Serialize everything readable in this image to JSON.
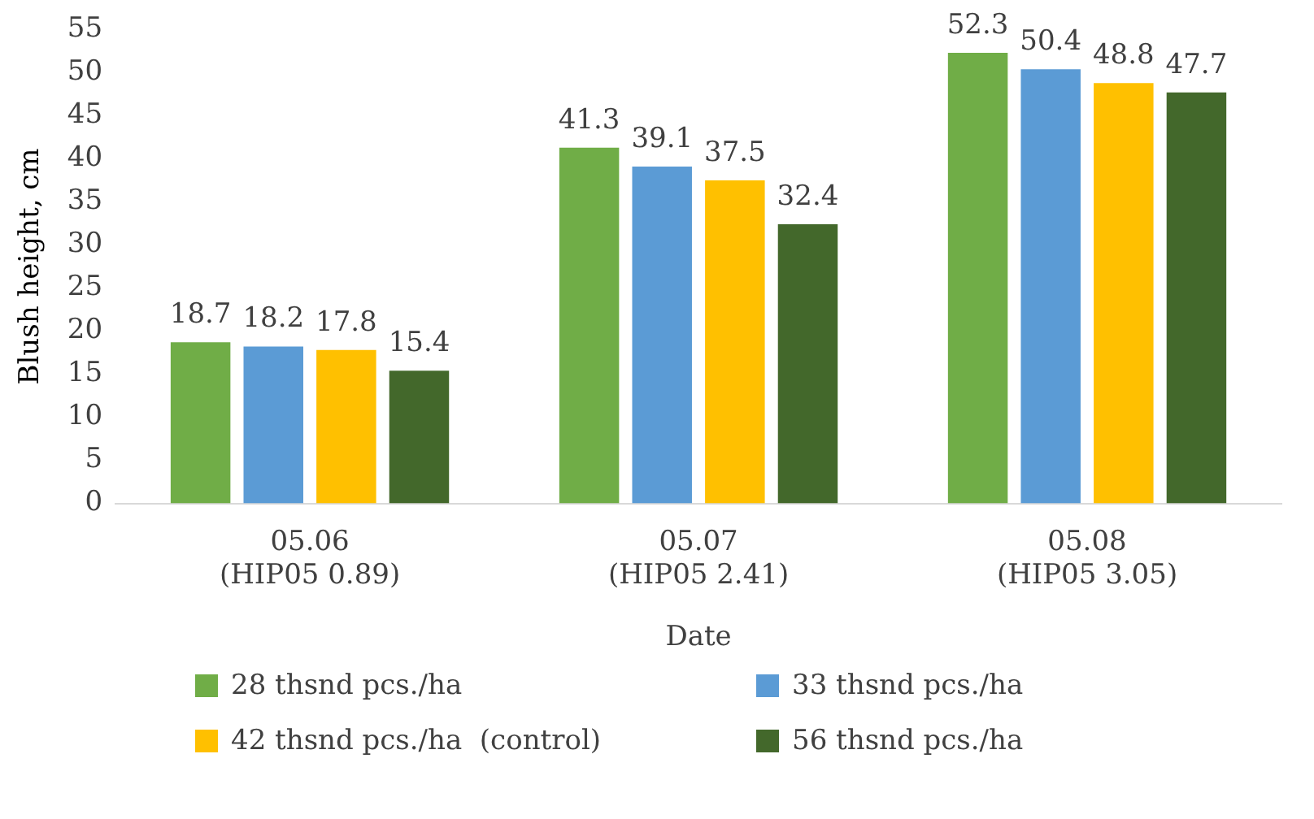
{
  "chart_data": {
    "type": "bar",
    "xlabel": "Date",
    "ylabel": "Blush height, cm",
    "categories": [
      "05.06\n(HIP05 0.89)",
      "05.07\n(HIP05 2.41)",
      "05.08\n(HIP05 3.05)"
    ],
    "series": [
      {
        "name": "28 thsnd pcs./ha",
        "color": "#70ad47",
        "values": [
          18.7,
          41.3,
          52.3
        ]
      },
      {
        "name": "33 thsnd pcs./ha",
        "color": "#5b9bd5",
        "values": [
          18.2,
          39.1,
          50.4
        ]
      },
      {
        "name": "42 thsnd pcs./ha  (control)",
        "color": "#ffc000",
        "values": [
          17.8,
          37.5,
          48.8
        ]
      },
      {
        "name": "56 thsnd pcs./ha",
        "color": "#43682b",
        "values": [
          15.4,
          32.4,
          47.7
        ]
      }
    ],
    "ylim": [
      0,
      55
    ],
    "yticks": [
      0,
      5,
      10,
      15,
      20,
      25,
      30,
      35,
      40,
      45,
      50,
      55
    ],
    "grid": false,
    "legend": "bottom",
    "data_labels": true
  }
}
